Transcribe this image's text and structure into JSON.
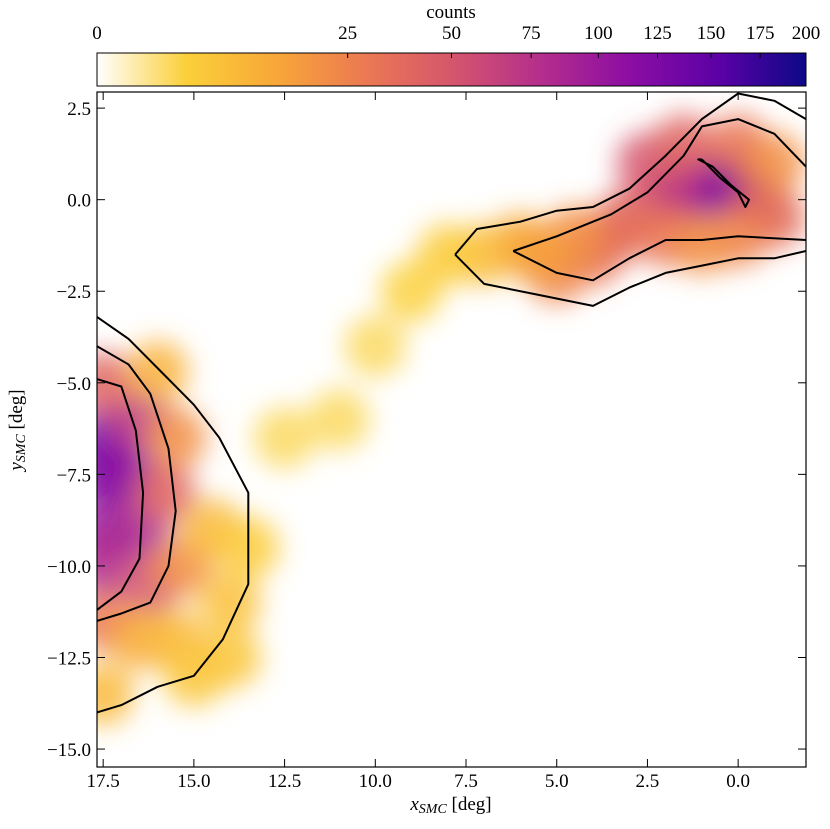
{
  "chart_data": {
    "type": "hist2d",
    "colorbar_label": "counts",
    "clim": [
      0,
      200
    ],
    "color_scale": "sqrt",
    "colormap": [
      "#ffffff",
      "#fbd03a",
      "#f8a838",
      "#ec7a52",
      "#d5566c",
      "#b42e8c",
      "#8d0ea3",
      "#5c01a6",
      "#0d0887"
    ],
    "cticks": [
      0,
      25,
      50,
      75,
      100,
      125,
      150,
      175,
      200
    ],
    "xlabel": {
      "symbol": "x",
      "subscript": "SMC",
      "unit": " [deg]"
    },
    "ylabel": {
      "symbol": "y",
      "subscript": "SMC",
      "unit": " [deg]"
    },
    "xlim": [
      17.67,
      -1.87
    ],
    "ylim": [
      -15.49,
      2.94
    ],
    "xticks": [
      17.5,
      {
        "value": 15,
        "label": "15.0"
      },
      12.5,
      {
        "value": 10,
        "label": "10.0"
      },
      7.5,
      {
        "value": 5,
        "label": "5.0"
      },
      2.5,
      {
        "value": 0,
        "label": "0.0"
      }
    ],
    "yticks": [
      2.5,
      {
        "value": 0,
        "label": "0.0"
      },
      {
        "value": -2.5,
        "label": "−2.5"
      },
      {
        "value": -5,
        "label": "−5.0"
      },
      {
        "value": -7.5,
        "label": "−7.5"
      },
      {
        "value": -10,
        "label": "−10.0"
      },
      {
        "value": -12.5,
        "label": "−12.5"
      },
      {
        "value": -15,
        "label": "−15.0"
      }
    ],
    "x": [
      0.5,
      1,
      0,
      1.5,
      2,
      -0.5,
      -1,
      3,
      4,
      5,
      6,
      7,
      2.5,
      1.5,
      0,
      -1,
      3.5,
      4.5,
      2,
      0,
      1,
      5.5,
      17.5,
      17.5,
      17.5,
      17.5,
      16.8,
      16.5,
      16.5,
      16.2,
      17.5,
      17.5,
      15.8,
      15.5,
      15.3,
      16.5,
      15.5,
      14.5,
      14,
      14,
      16,
      17.5,
      13.5,
      15,
      11,
      12.5,
      10,
      9,
      8
    ],
    "y": [
      0.5,
      0,
      0.5,
      0.5,
      0,
      0,
      -0.5,
      -0.5,
      -1.5,
      -2,
      -1.2,
      -1.5,
      1,
      1.5,
      1.5,
      1,
      -1,
      -1,
      -1,
      -1,
      -1.2,
      -1.5,
      -6.5,
      -7.5,
      -9,
      -10,
      -7.5,
      -6,
      -9,
      -10.5,
      -5,
      -11.5,
      -8,
      -6.5,
      -10,
      -12,
      -12,
      -9,
      -11,
      -12.5,
      -4.7,
      -13.5,
      -9.5,
      -13,
      -6,
      -6.5,
      -4,
      -2.5,
      -1.5
    ],
    "values": [
      150,
      110,
      140,
      90,
      70,
      60,
      35,
      40,
      30,
      25,
      12,
      8,
      50,
      40,
      30,
      20,
      35,
      20,
      30,
      25,
      20,
      15,
      120,
      130,
      100,
      80,
      110,
      70,
      85,
      50,
      40,
      30,
      40,
      20,
      20,
      12,
      8,
      8,
      6,
      5,
      10,
      8,
      4,
      5,
      2,
      2,
      2,
      3,
      4
    ],
    "contours": [
      {
        "x": [
          7.8,
          7,
          5.5,
          4,
          3,
          2,
          1,
          0,
          -1,
          -1.87
        ],
        "y": [
          -1.5,
          -2.3,
          -2.6,
          -2.9,
          -2.4,
          -2,
          -1.8,
          -1.6,
          -1.6,
          -1.4
        ]
      },
      {
        "x": [
          -1.87,
          -1,
          0,
          1,
          2,
          3,
          4,
          5,
          6,
          7.2,
          7.8
        ],
        "y": [
          2.2,
          2.7,
          2.9,
          2.2,
          1.2,
          0.3,
          -0.2,
          -0.3,
          -0.6,
          -0.8,
          -1.5
        ]
      },
      {
        "x": [
          6.2,
          5,
          4,
          3,
          2,
          1,
          0,
          -1.87
        ],
        "y": [
          -1.4,
          -2,
          -2.2,
          -1.6,
          -1.1,
          -1.1,
          -1,
          -1.1
        ]
      },
      {
        "x": [
          6.2,
          5,
          3.5,
          2.5,
          1.5,
          1,
          0,
          -1,
          -1.87
        ],
        "y": [
          -1.4,
          -1,
          -0.4,
          0.2,
          1.2,
          2,
          2.2,
          1.8,
          0.9
        ]
      },
      {
        "x": [
          1,
          0.5,
          0,
          -0.2,
          -0.3,
          0.2,
          0.7,
          1.1,
          1
        ],
        "y": [
          1.1,
          0.6,
          0.2,
          -0.2,
          0,
          0.4,
          0.9,
          1.1,
          1.1
        ]
      },
      {
        "x": [
          17.67,
          16.8,
          15.8,
          15,
          14.3,
          13.5,
          13.5,
          14.2,
          15,
          16,
          17,
          17.67
        ],
        "y": [
          -3.2,
          -3.8,
          -4.8,
          -5.6,
          -6.5,
          -8,
          -10.5,
          -12,
          -13,
          -13.3,
          -13.8,
          -14
        ]
      },
      {
        "x": [
          17.67,
          16.8,
          16.2,
          15.7,
          15.5,
          15.7,
          16.2,
          17,
          17.67
        ],
        "y": [
          -4,
          -4.5,
          -5.3,
          -6.8,
          -8.5,
          -10,
          -11,
          -11.3,
          -11.5
        ]
      },
      {
        "x": [
          17.67,
          17,
          16.6,
          16.4,
          16.5,
          17,
          17.67
        ],
        "y": [
          -4.9,
          -5.1,
          -6.3,
          -8,
          -9.8,
          -10.7,
          -11.2
        ]
      }
    ]
  }
}
